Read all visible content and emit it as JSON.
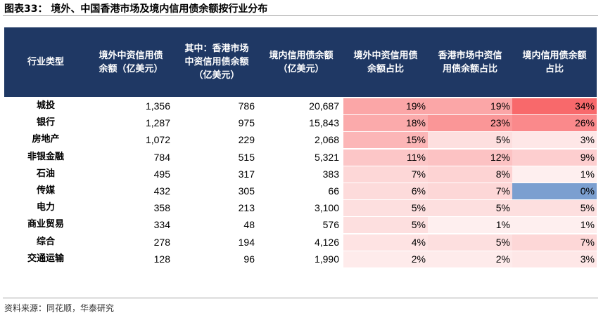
{
  "title": "图表33：  境外、中国香港市场及境内信用债余额按行业分布",
  "headers": [
    "行业类型",
    "境外中资信用债\n余额（亿美元）",
    "其中：香港市场\n中资信用债余额\n（亿美元）",
    "境内信用债余额\n（亿美元）",
    "境外中资信用债\n余额占比",
    "香港市场中资信\n用债余额占比",
    "境内信用债余额\n占比"
  ],
  "rows": [
    {
      "industry": "城投",
      "offshore": "1,356",
      "hk": "786",
      "onshore": "20,687",
      "p_off": "19%",
      "p_hk": "19%",
      "p_on": "34%"
    },
    {
      "industry": "银行",
      "offshore": "1,287",
      "hk": "975",
      "onshore": "15,843",
      "p_off": "18%",
      "p_hk": "23%",
      "p_on": "26%"
    },
    {
      "industry": "房地产",
      "offshore": "1,072",
      "hk": "229",
      "onshore": "2,068",
      "p_off": "15%",
      "p_hk": "5%",
      "p_on": "3%"
    },
    {
      "industry": "非银金融",
      "offshore": "784",
      "hk": "515",
      "onshore": "5,321",
      "p_off": "11%",
      "p_hk": "12%",
      "p_on": "9%"
    },
    {
      "industry": "石油",
      "offshore": "495",
      "hk": "317",
      "onshore": "383",
      "p_off": "7%",
      "p_hk": "8%",
      "p_on": "1%"
    },
    {
      "industry": "传媒",
      "offshore": "432",
      "hk": "305",
      "onshore": "66",
      "p_off": "6%",
      "p_hk": "7%",
      "p_on": "0%"
    },
    {
      "industry": "电力",
      "offshore": "358",
      "hk": "213",
      "onshore": "3,100",
      "p_off": "5%",
      "p_hk": "5%",
      "p_on": "5%"
    },
    {
      "industry": "商业贸易",
      "offshore": "334",
      "hk": "48",
      "onshore": "576",
      "p_off": "5%",
      "p_hk": "1%",
      "p_on": "1%"
    },
    {
      "industry": "综合",
      "offshore": "278",
      "hk": "194",
      "onshore": "4,126",
      "p_off": "4%",
      "p_hk": "5%",
      "p_on": "7%"
    },
    {
      "industry": "交通运输",
      "offshore": "128",
      "hk": "96",
      "onshore": "1,990",
      "p_off": "2%",
      "p_hk": "2%",
      "p_on": "3%"
    }
  ],
  "colors": {
    "header_bg": "#1f3864",
    "heat_high": "#f8696b",
    "heat_low": "#ffffff",
    "heat_zero": "#7b9fd0"
  },
  "source": "资料来源：同花顺，华泰研究"
}
